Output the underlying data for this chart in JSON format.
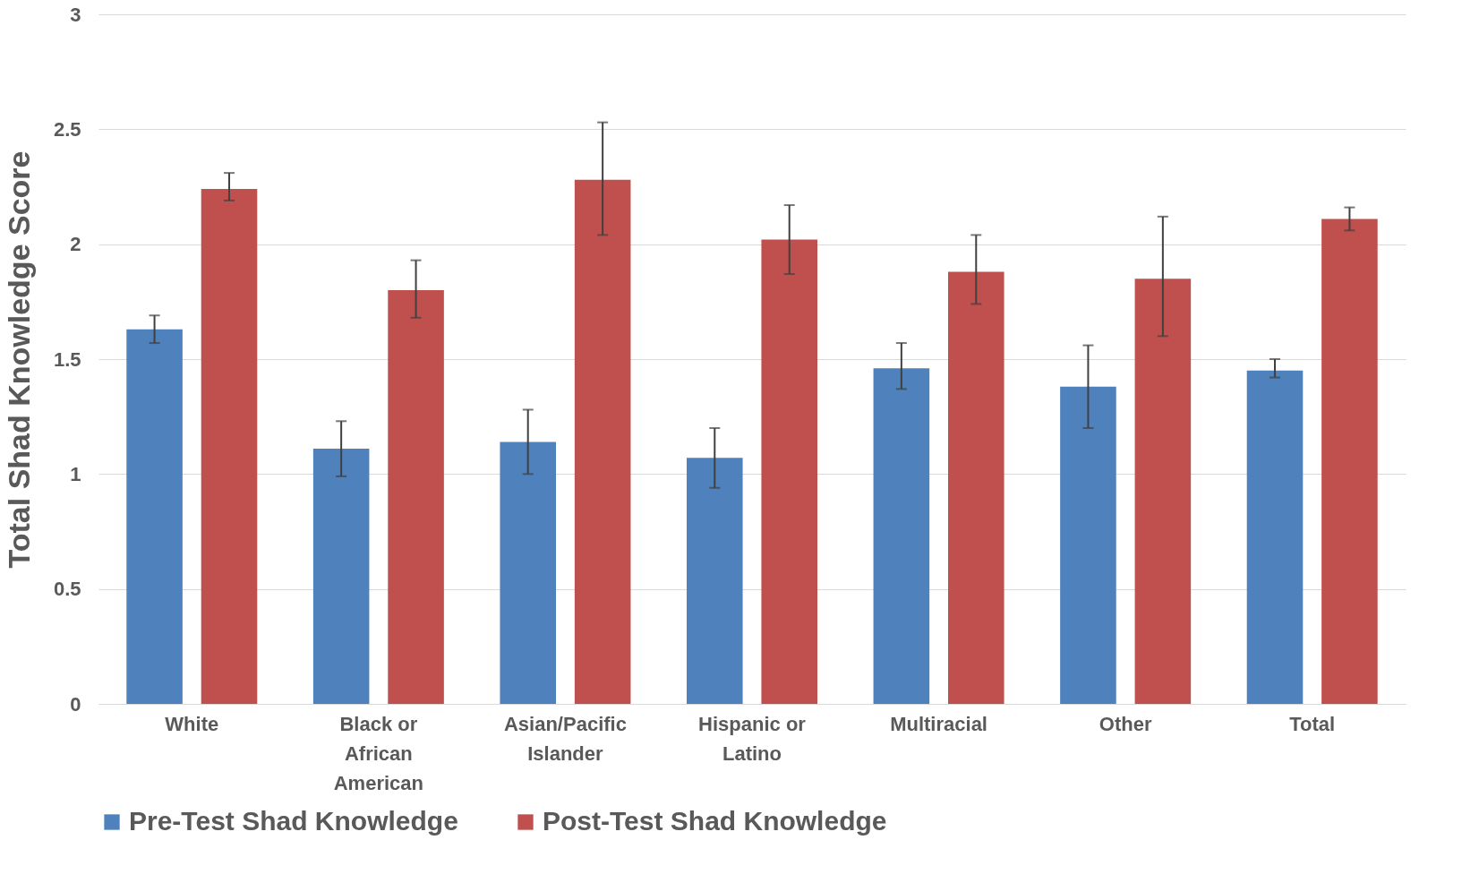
{
  "chart_data": {
    "type": "bar",
    "ylabel": "Total Shad Knowledge Score",
    "categories": [
      "White",
      "Black or African American",
      "Asian/Pacific Islander",
      "Hispanic or Latino",
      "Multiracial",
      "Other",
      "Total"
    ],
    "series": [
      {
        "name": "Pre-Test Shad Knowledge",
        "color": "#4f81bd",
        "values": [
          1.63,
          1.11,
          1.14,
          1.07,
          1.46,
          1.38,
          1.45
        ],
        "errors": [
          [
            1.57,
            1.69
          ],
          [
            0.99,
            1.23
          ],
          [
            1.0,
            1.28
          ],
          [
            0.94,
            1.2
          ],
          [
            1.37,
            1.57
          ],
          [
            1.2,
            1.56
          ],
          [
            1.42,
            1.5
          ]
        ]
      },
      {
        "name": "Post-Test Shad Knowledge",
        "color": "#c0504d",
        "values": [
          2.24,
          1.8,
          2.28,
          2.02,
          1.88,
          1.85,
          2.11
        ],
        "errors": [
          [
            2.19,
            2.31
          ],
          [
            1.68,
            1.93
          ],
          [
            2.04,
            2.53
          ],
          [
            1.87,
            2.17
          ],
          [
            1.74,
            2.04
          ],
          [
            1.6,
            2.12
          ],
          [
            2.06,
            2.16
          ]
        ]
      }
    ],
    "ylim": [
      0,
      3
    ],
    "yticks": [
      0,
      0.5,
      1,
      1.5,
      2,
      2.5,
      3
    ],
    "grid": "y",
    "legend": "bottom"
  }
}
